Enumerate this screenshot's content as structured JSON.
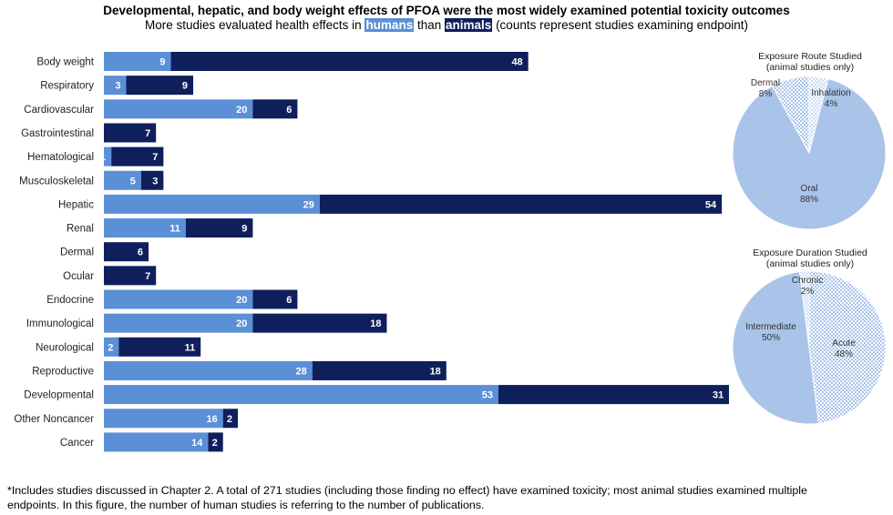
{
  "header": {
    "title": "Developmental, hepatic, and body weight effects of PFOA were the most widely examined potential toxicity outcomes",
    "subtitle_pre": "More studies evaluated health effects in",
    "humans_label": "humans",
    "subtitle_mid": "than",
    "animals_label": "animals",
    "subtitle_post": "(counts represent studies examining endpoint)"
  },
  "colors": {
    "humans": "#5b8fd6",
    "animals": "#0e1f5b",
    "pie": "#a9c4e8"
  },
  "chart_data": [
    {
      "type": "bar",
      "orientation": "horizontal",
      "stacked": true,
      "categories": [
        "Body weight",
        "Respiratory",
        "Cardiovascular",
        "Gastrointestinal",
        "Hematological",
        "Musculoskeletal",
        "Hepatic",
        "Renal",
        "Dermal",
        "Ocular",
        "Endocrine",
        "Immunological",
        "Neurological",
        "Reproductive",
        "Developmental",
        "Other Noncancer",
        "Cancer"
      ],
      "series": [
        {
          "name": "humans",
          "values": [
            9,
            3,
            20,
            0,
            1,
            5,
            29,
            11,
            0,
            0,
            20,
            20,
            2,
            28,
            53,
            16,
            14
          ]
        },
        {
          "name": "animals",
          "values": [
            48,
            9,
            6,
            7,
            7,
            3,
            54,
            9,
            6,
            7,
            6,
            18,
            11,
            18,
            31,
            2,
            2
          ]
        }
      ]
    },
    {
      "type": "pie",
      "title_line1": "Exposure Route Studied",
      "title_line2": "(animal studies only)",
      "slices": [
        {
          "label": "Inhalation",
          "pct_label": "4%",
          "value": 4,
          "pattern": "dots"
        },
        {
          "label": "Oral",
          "pct_label": "88%",
          "value": 88,
          "pattern": "solid"
        },
        {
          "label": "Dermal",
          "pct_label": "8%",
          "value": 8,
          "pattern": "checker"
        }
      ]
    },
    {
      "type": "pie",
      "title_line1": "Exposure Duration Studied",
      "title_line2": "(animal studies only)",
      "slices": [
        {
          "label": "Acute",
          "pct_label": "48%",
          "value": 48,
          "pattern": "checker"
        },
        {
          "label": "Intermediate",
          "pct_label": "50%",
          "value": 50,
          "pattern": "solid"
        },
        {
          "label": "Chronic",
          "pct_label": "2%",
          "value": 2,
          "pattern": "dots"
        }
      ]
    }
  ],
  "footnote": {
    "line1": "*Includes studies discussed in Chapter 2.  A total of 271 studies (including those finding no effect) have examined toxicity; most animal studies examined multiple",
    "line2": "endpoints.  In this figure, the number of human studies is referring to the number of publications."
  }
}
